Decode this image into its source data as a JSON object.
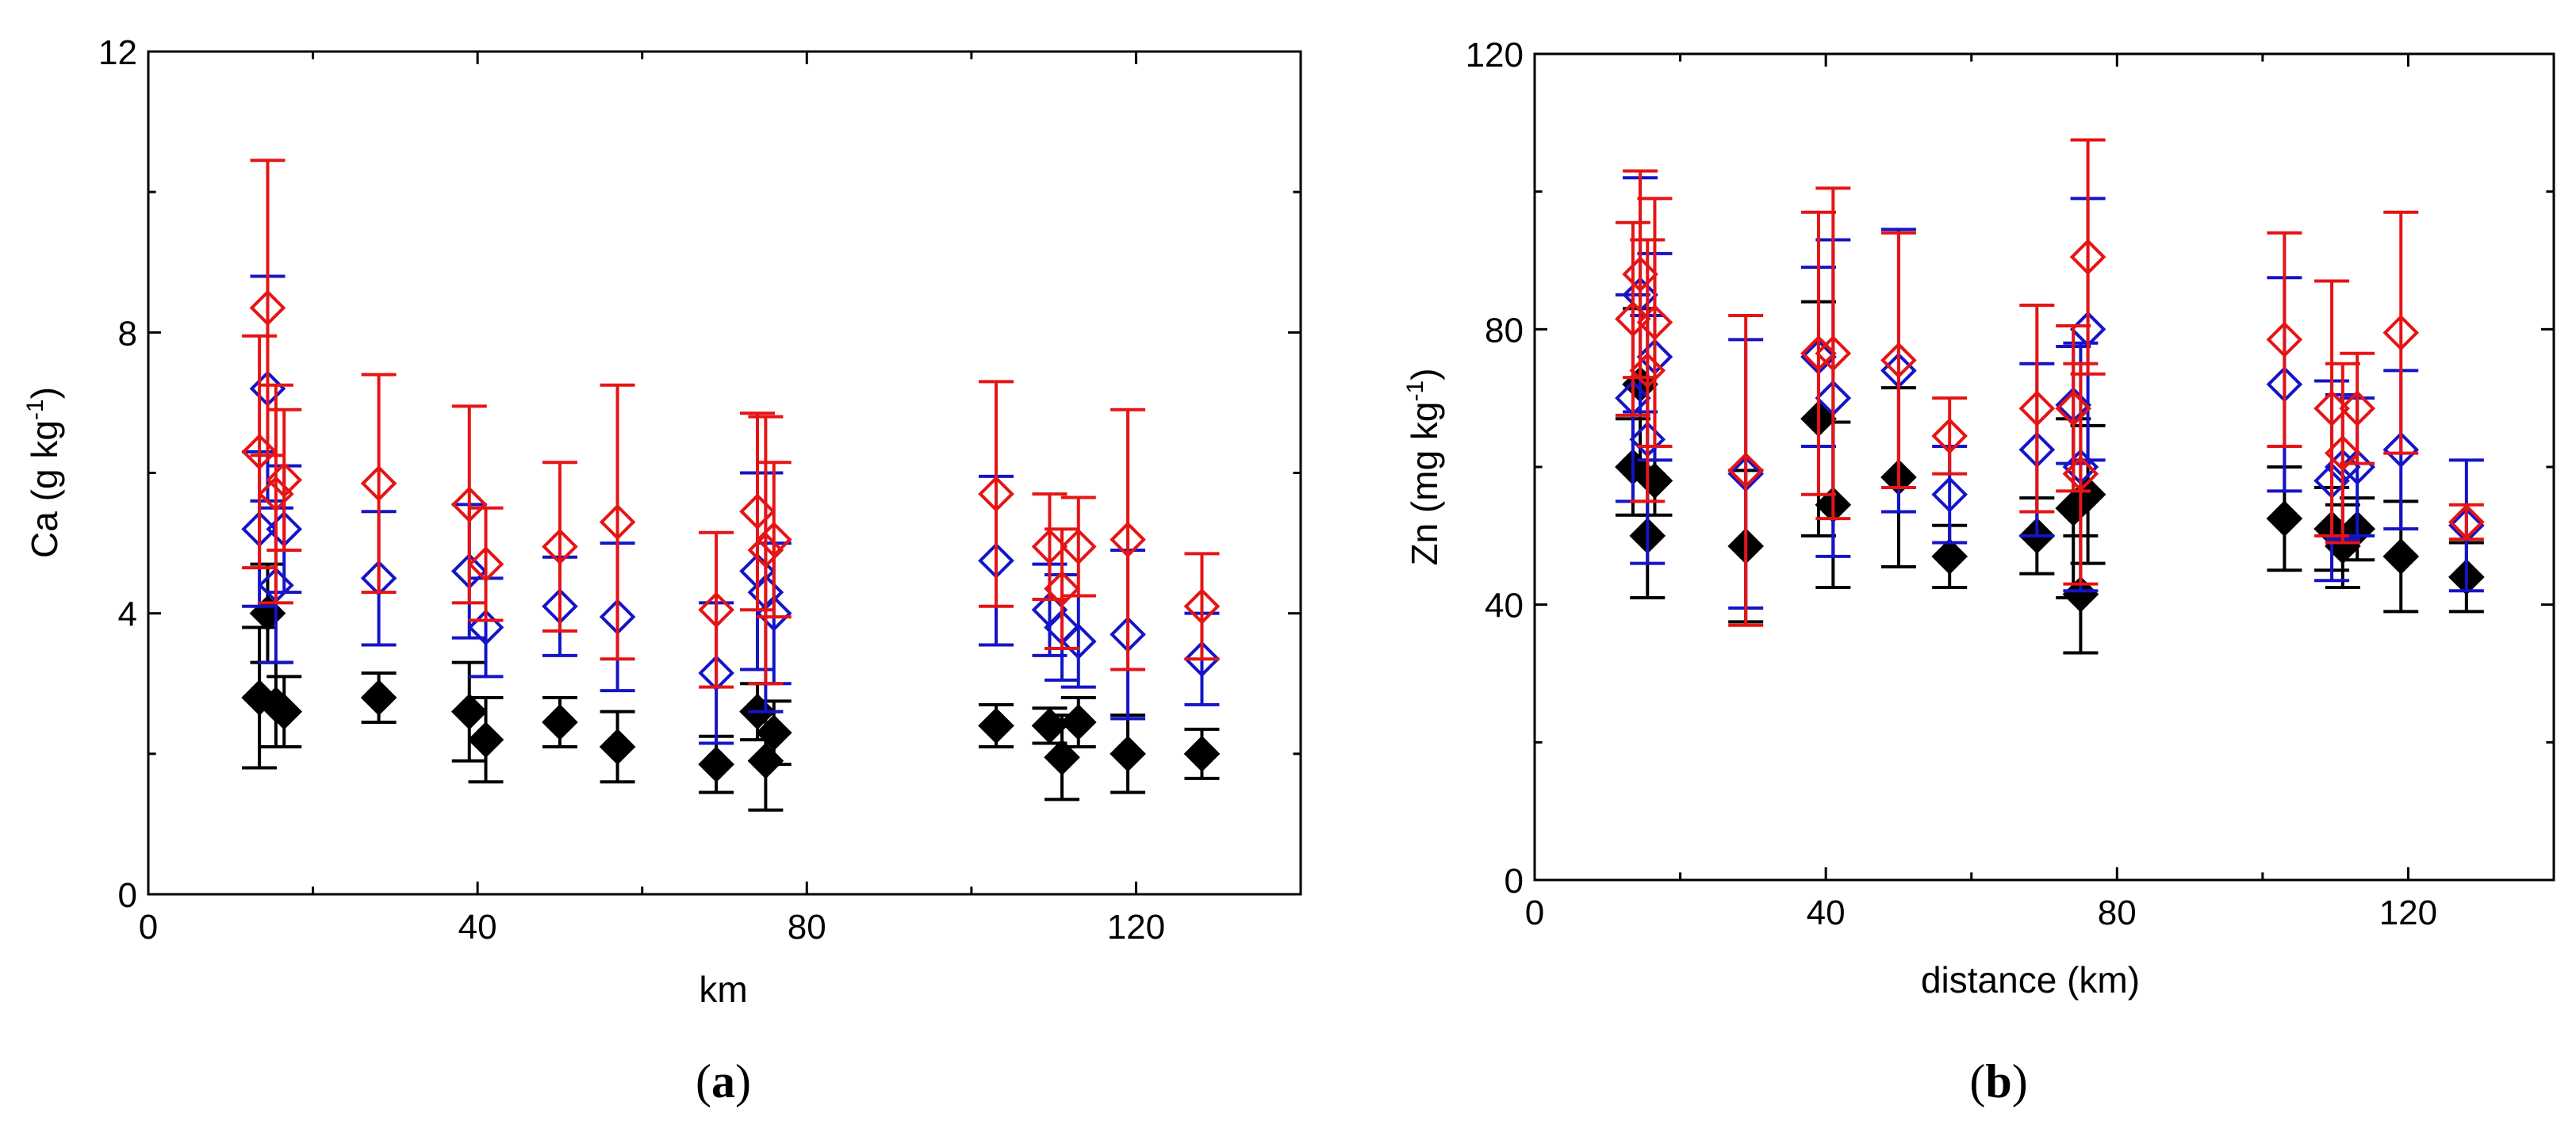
{
  "chart_data": [
    {
      "type": "scatter",
      "panel": "a",
      "ylabel": "Ca (g kg⁻¹)",
      "ylabel_main": "Ca (g kg",
      "ylabel_sup": "-1",
      "ylabel_close": ")",
      "xlabel": "km",
      "xlim": [
        0,
        140
      ],
      "ylim": [
        0,
        12
      ],
      "xticks": [
        0,
        40,
        80,
        120
      ],
      "yticks": [
        0,
        4,
        8,
        12
      ],
      "panel_open": "(",
      "panel_letter": "a",
      "panel_close": ")",
      "series": [
        {
          "name": "black filled diamonds",
          "color": "#000000",
          "filled": true,
          "points": [
            {
              "x": 13.5,
              "y": 2.8,
              "err": 1.0
            },
            {
              "x": 14.5,
              "y": 4.0,
              "err": 0.7
            },
            {
              "x": 15.5,
              "y": 2.7,
              "err": 0.6
            },
            {
              "x": 16.5,
              "y": 2.6,
              "err": 0.5
            },
            {
              "x": 28,
              "y": 2.8,
              "err": 0.35
            },
            {
              "x": 39,
              "y": 2.6,
              "err": 0.7
            },
            {
              "x": 41,
              "y": 2.2,
              "err": 0.6
            },
            {
              "x": 50,
              "y": 2.45,
              "err": 0.35
            },
            {
              "x": 57,
              "y": 2.1,
              "err": 0.5
            },
            {
              "x": 69,
              "y": 1.85,
              "err": 0.4
            },
            {
              "x": 74,
              "y": 2.6,
              "err": 0.4
            },
            {
              "x": 75,
              "y": 1.9,
              "err": 0.7
            },
            {
              "x": 76,
              "y": 2.3,
              "err": 0.45
            },
            {
              "x": 103,
              "y": 2.4,
              "err": 0.3
            },
            {
              "x": 109.5,
              "y": 2.4,
              "err": 0.25
            },
            {
              "x": 111,
              "y": 1.95,
              "err": 0.6
            },
            {
              "x": 113,
              "y": 2.45,
              "err": 0.35
            },
            {
              "x": 119,
              "y": 2.0,
              "err": 0.55
            },
            {
              "x": 128,
              "y": 2.0,
              "err": 0.35
            }
          ]
        },
        {
          "name": "blue open diamonds",
          "color": "#1414c8",
          "filled": false,
          "points": [
            {
              "x": 13.5,
              "y": 5.2,
              "err": 1.1
            },
            {
              "x": 14.5,
              "y": 7.2,
              "err": 1.6
            },
            {
              "x": 15.5,
              "y": 4.4,
              "err": 1.1
            },
            {
              "x": 16.5,
              "y": 5.2,
              "err": 0.9
            },
            {
              "x": 28,
              "y": 4.5,
              "err": 0.95
            },
            {
              "x": 39,
              "y": 4.6,
              "err": 0.95
            },
            {
              "x": 41,
              "y": 3.8,
              "err": 0.7
            },
            {
              "x": 50,
              "y": 4.1,
              "err": 0.7
            },
            {
              "x": 57,
              "y": 3.95,
              "err": 1.05
            },
            {
              "x": 69,
              "y": 3.15,
              "err": 1.0
            },
            {
              "x": 74,
              "y": 4.6,
              "err": 1.4
            },
            {
              "x": 75,
              "y": 4.3,
              "err": 1.7
            },
            {
              "x": 76,
              "y": 4.0,
              "err": 1.0
            },
            {
              "x": 103,
              "y": 4.75,
              "err": 1.2
            },
            {
              "x": 109.5,
              "y": 4.05,
              "err": 0.65
            },
            {
              "x": 111,
              "y": 3.8,
              "err": 0.75
            },
            {
              "x": 113,
              "y": 3.6,
              "err": 0.65
            },
            {
              "x": 119,
              "y": 3.7,
              "err": 1.2
            },
            {
              "x": 128,
              "y": 3.35,
              "err": 0.65
            }
          ]
        },
        {
          "name": "red open diamonds",
          "color": "#e61414",
          "filled": false,
          "points": [
            {
              "x": 13.5,
              "y": 6.3,
              "err": 1.65
            },
            {
              "x": 14.5,
              "y": 8.35,
              "err": 2.1
            },
            {
              "x": 15.5,
              "y": 5.7,
              "err": 1.55
            },
            {
              "x": 16.5,
              "y": 5.9,
              "err": 1.0
            },
            {
              "x": 28,
              "y": 5.85,
              "err": 1.55
            },
            {
              "x": 39,
              "y": 5.55,
              "err": 1.4
            },
            {
              "x": 41,
              "y": 4.7,
              "err": 0.8
            },
            {
              "x": 50,
              "y": 4.95,
              "err": 1.2
            },
            {
              "x": 57,
              "y": 5.3,
              "err": 1.95
            },
            {
              "x": 69,
              "y": 4.05,
              "err": 1.1
            },
            {
              "x": 74,
              "y": 5.45,
              "err": 1.4
            },
            {
              "x": 75,
              "y": 4.9,
              "err": 1.9
            },
            {
              "x": 76,
              "y": 5.05,
              "err": 1.1
            },
            {
              "x": 103,
              "y": 5.7,
              "err": 1.6
            },
            {
              "x": 109.5,
              "y": 4.95,
              "err": 0.75
            },
            {
              "x": 111,
              "y": 4.35,
              "err": 0.85
            },
            {
              "x": 113,
              "y": 4.95,
              "err": 0.7
            },
            {
              "x": 119,
              "y": 5.05,
              "err": 1.85
            },
            {
              "x": 128,
              "y": 4.1,
              "err": 0.75
            }
          ]
        }
      ]
    },
    {
      "type": "scatter",
      "panel": "b",
      "ylabel": "Zn (mg kg⁻¹)",
      "ylabel_main": "Zn (mg kg",
      "ylabel_sup": "-1",
      "ylabel_close": ")",
      "xlabel": "distance (km)",
      "xlim": [
        0,
        140
      ],
      "ylim": [
        0,
        120
      ],
      "xticks": [
        0,
        40,
        80,
        120
      ],
      "yticks": [
        0,
        40,
        80,
        120
      ],
      "panel_open": "(",
      "panel_letter": "b",
      "panel_close": ")",
      "series": [
        {
          "name": "black filled diamonds",
          "color": "#000000",
          "filled": true,
          "points": [
            {
              "x": 13.5,
              "y": 60,
              "err": 7
            },
            {
              "x": 14.5,
              "y": 72,
              "err": 11
            },
            {
              "x": 15.5,
              "y": 50,
              "err": 9
            },
            {
              "x": 16.5,
              "y": 58,
              "err": 5
            },
            {
              "x": 29,
              "y": 48.5,
              "err": 11
            },
            {
              "x": 39,
              "y": 67,
              "err": 17
            },
            {
              "x": 41,
              "y": 54.5,
              "err": 12
            },
            {
              "x": 50,
              "y": 58.5,
              "err": 13
            },
            {
              "x": 57,
              "y": 47,
              "err": 4.5
            },
            {
              "x": 69,
              "y": 50,
              "err": 5.5
            },
            {
              "x": 74,
              "y": 54,
              "err": 13
            },
            {
              "x": 75,
              "y": 41.5,
              "err": 8.5
            },
            {
              "x": 76,
              "y": 56,
              "err": 10
            },
            {
              "x": 103,
              "y": 52.5,
              "err": 7.5
            },
            {
              "x": 109.5,
              "y": 51,
              "err": 6
            },
            {
              "x": 111,
              "y": 48.5,
              "err": 6
            },
            {
              "x": 113,
              "y": 51,
              "err": 4.5
            },
            {
              "x": 119,
              "y": 47,
              "err": 8
            },
            {
              "x": 128,
              "y": 44,
              "err": 5
            }
          ]
        },
        {
          "name": "blue open diamonds",
          "color": "#1414c8",
          "filled": false,
          "points": [
            {
              "x": 13.5,
              "y": 70,
              "err": 15
            },
            {
              "x": 14.5,
              "y": 85,
              "err": 17
            },
            {
              "x": 15.5,
              "y": 64,
              "err": 18
            },
            {
              "x": 16.5,
              "y": 76,
              "err": 15
            },
            {
              "x": 29,
              "y": 59,
              "err": 19.5
            },
            {
              "x": 39,
              "y": 76,
              "err": 13
            },
            {
              "x": 41,
              "y": 70,
              "err": 23
            },
            {
              "x": 50,
              "y": 74,
              "err": 20.5
            },
            {
              "x": 57,
              "y": 56,
              "err": 7
            },
            {
              "x": 69,
              "y": 62.5,
              "err": 12.5
            },
            {
              "x": 74,
              "y": 69,
              "err": 8.5
            },
            {
              "x": 75,
              "y": 60,
              "err": 18
            },
            {
              "x": 76,
              "y": 80,
              "err": 19
            },
            {
              "x": 103,
              "y": 72,
              "err": 15.5
            },
            {
              "x": 109.5,
              "y": 58,
              "err": 14.5
            },
            {
              "x": 111,
              "y": 60,
              "err": 10.5
            },
            {
              "x": 113,
              "y": 60,
              "err": 10
            },
            {
              "x": 119,
              "y": 62.5,
              "err": 11.5
            },
            {
              "x": 128,
              "y": 51.5,
              "err": 9.5
            }
          ]
        },
        {
          "name": "red open diamonds",
          "color": "#e61414",
          "filled": false,
          "points": [
            {
              "x": 13.5,
              "y": 81.5,
              "err": 14
            },
            {
              "x": 14.5,
              "y": 88,
              "err": 15
            },
            {
              "x": 15.5,
              "y": 74,
              "err": 19
            },
            {
              "x": 16.5,
              "y": 81,
              "err": 18
            },
            {
              "x": 29,
              "y": 59.5,
              "err": 22.5
            },
            {
              "x": 39,
              "y": 76.5,
              "err": 20.5
            },
            {
              "x": 41,
              "y": 76.5,
              "err": 24
            },
            {
              "x": 50,
              "y": 75.5,
              "err": 18.5
            },
            {
              "x": 57,
              "y": 64.5,
              "err": 5.5
            },
            {
              "x": 69,
              "y": 68.5,
              "err": 15
            },
            {
              "x": 74,
              "y": 68.5,
              "err": 12
            },
            {
              "x": 75,
              "y": 59,
              "err": 16
            },
            {
              "x": 76,
              "y": 90.5,
              "err": 17
            },
            {
              "x": 103,
              "y": 78.5,
              "err": 15.5
            },
            {
              "x": 109.5,
              "y": 68.5,
              "err": 18.5
            },
            {
              "x": 111,
              "y": 62,
              "err": 13
            },
            {
              "x": 113,
              "y": 68.5,
              "err": 8
            },
            {
              "x": 119,
              "y": 79.5,
              "err": 17.5
            },
            {
              "x": 128,
              "y": 52,
              "err": 2.5
            }
          ]
        }
      ]
    }
  ]
}
